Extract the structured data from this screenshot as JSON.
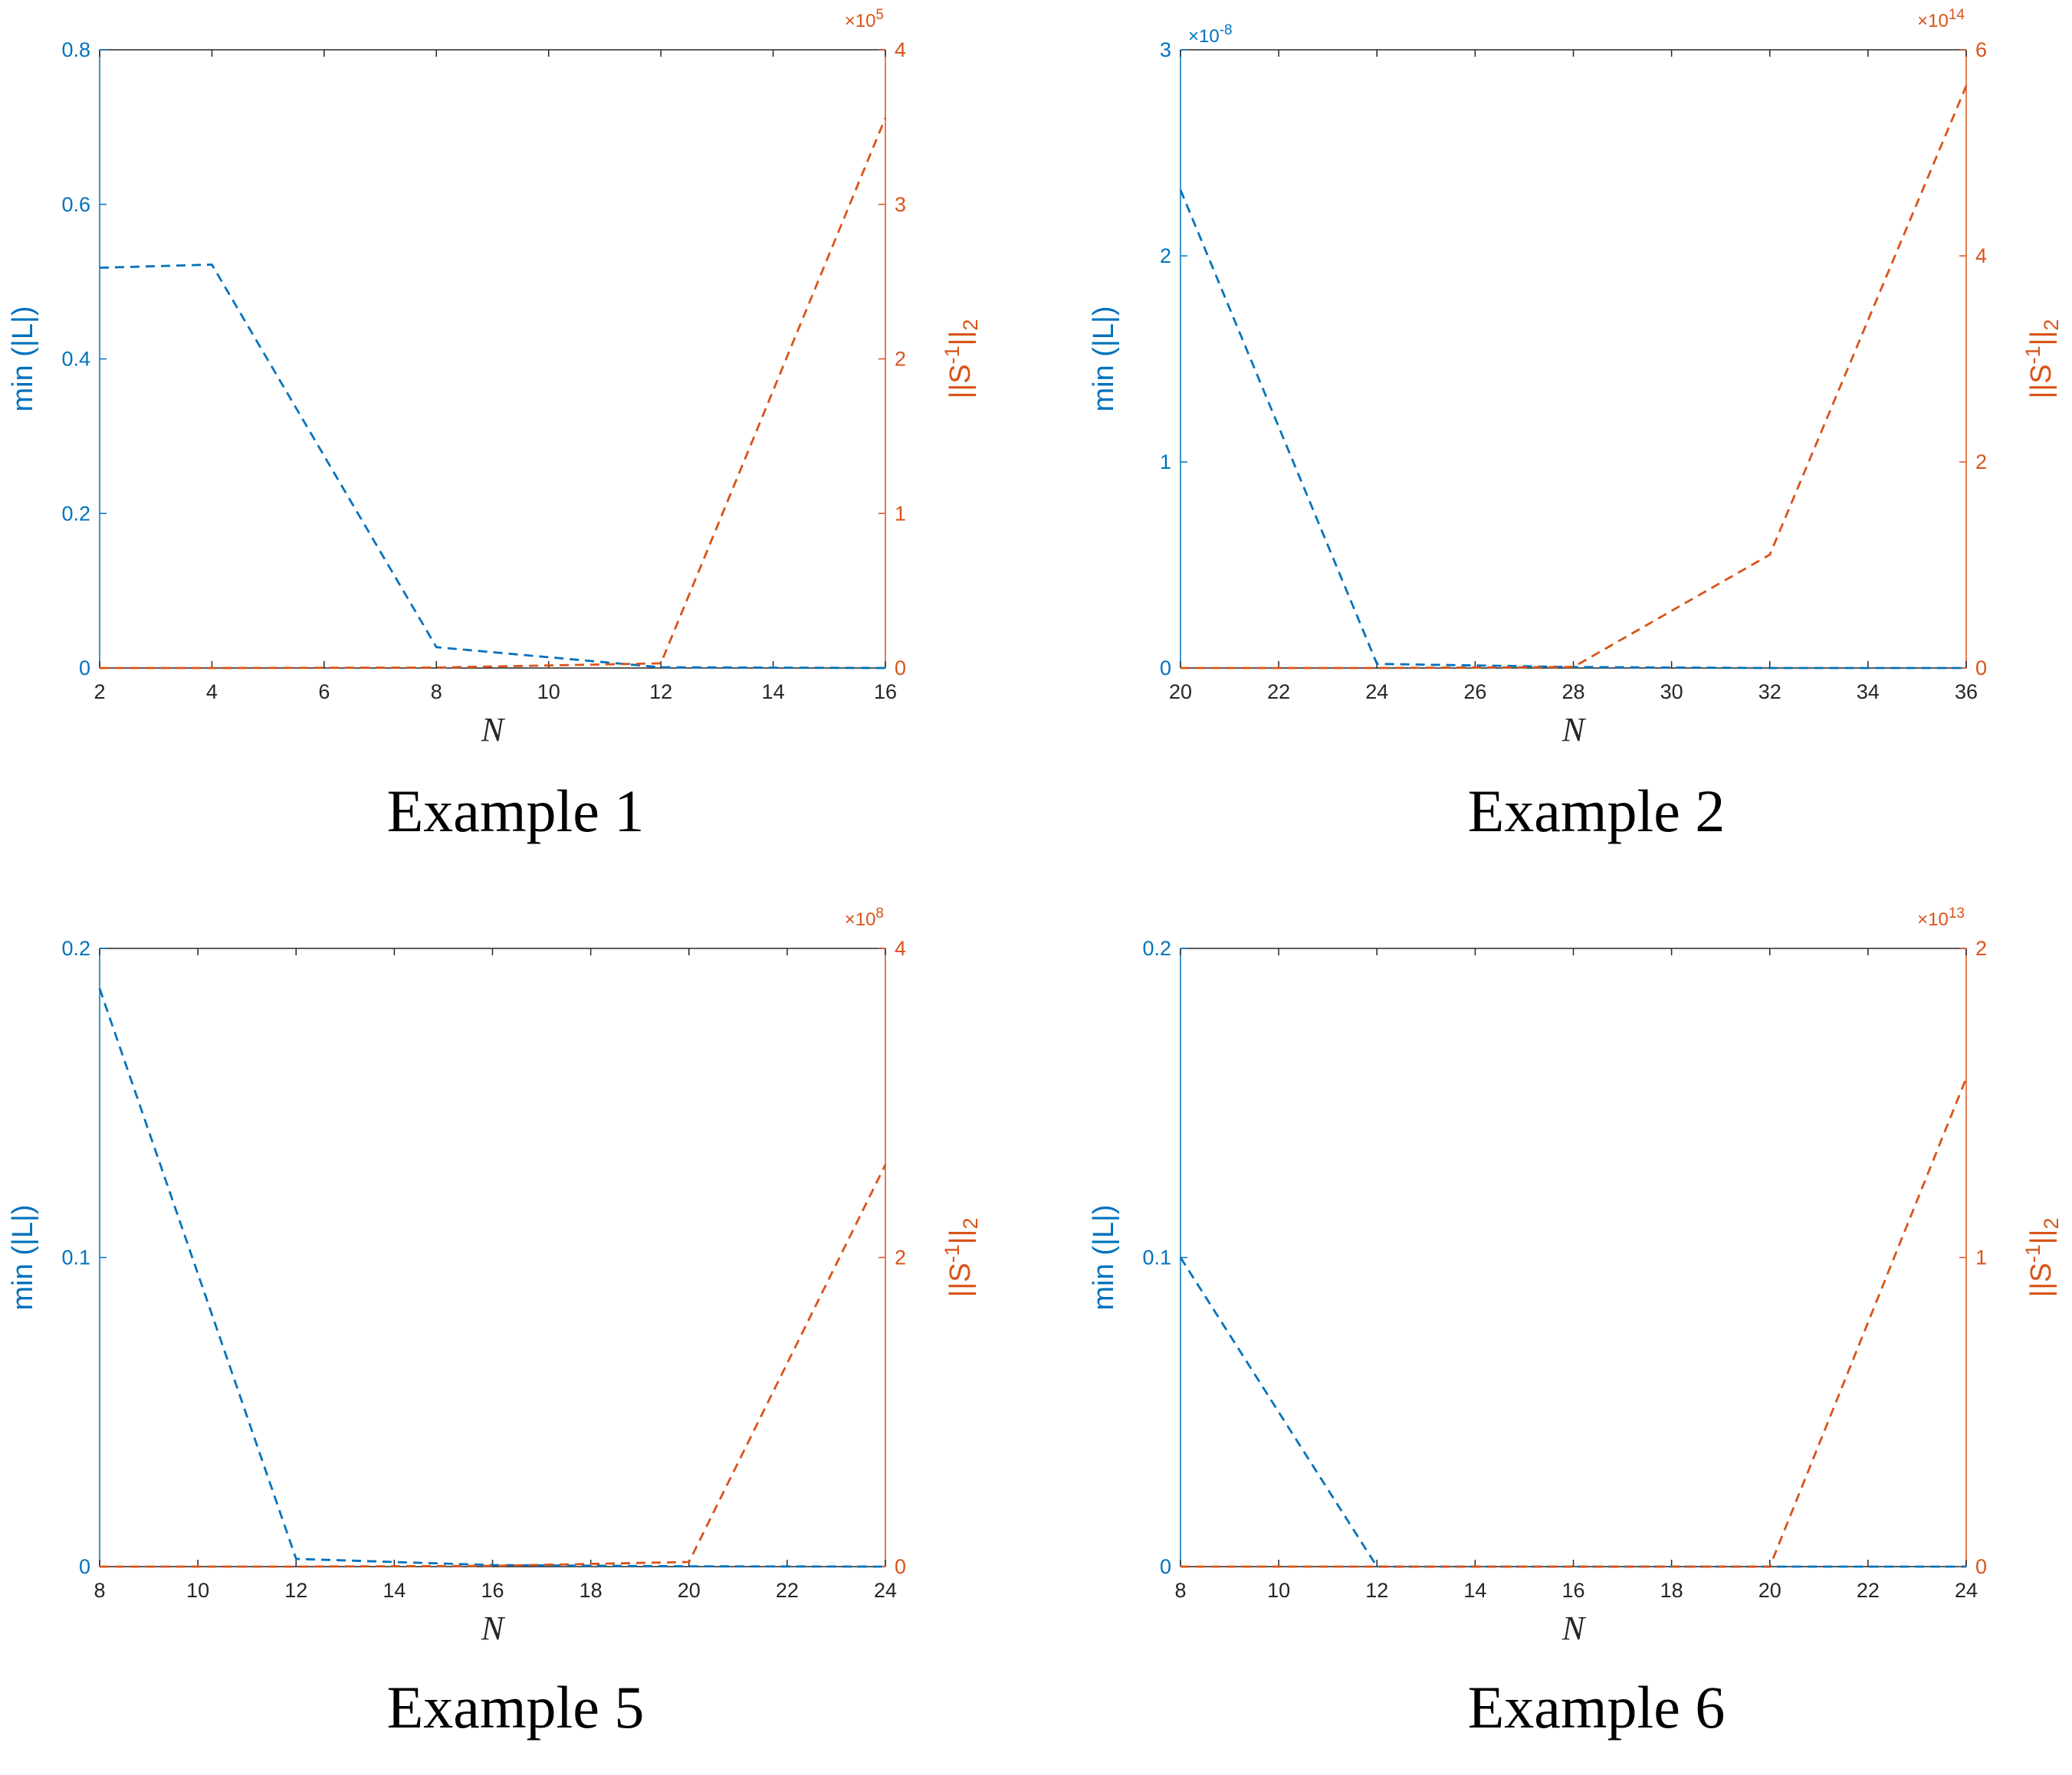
{
  "colors": {
    "left": "#0072BD",
    "right": "#D95319",
    "axis": "#262626"
  },
  "chart_data": [
    {
      "type": "line",
      "caption": "Example 1",
      "xlabel": "N",
      "ylabel_left": "min (|L|)",
      "ylabel_right": "||S^-1||_2",
      "xlim": [
        2,
        16
      ],
      "xticks": [
        "2",
        "4",
        "6",
        "8",
        "10",
        "12",
        "14",
        "16"
      ],
      "ylim_left": [
        0,
        0.8
      ],
      "yticks_left": [
        "0",
        "0.2",
        "0.4",
        "0.6",
        "0.8"
      ],
      "exp_left": null,
      "ylim_right": [
        0,
        4
      ],
      "yticks_right": [
        "0",
        "1",
        "2",
        "3",
        "4"
      ],
      "exp_right": "5",
      "series": [
        {
          "axis": "left",
          "style": "dashed",
          "x": [
            2,
            4,
            8,
            12,
            16
          ],
          "y": [
            0.518,
            0.522,
            0.027,
            0.001,
            0
          ]
        },
        {
          "axis": "right",
          "style": "dashed",
          "x": [
            2,
            4,
            8,
            12,
            16
          ],
          "y": [
            0,
            0,
            0.003,
            0.03,
            3.56
          ]
        }
      ]
    },
    {
      "type": "line",
      "caption": "Example 2",
      "xlabel": "N",
      "ylabel_left": "min (|L|)",
      "ylabel_right": "||S^-1||_2",
      "xlim": [
        20,
        36
      ],
      "xticks": [
        "20",
        "22",
        "24",
        "26",
        "28",
        "30",
        "32",
        "34",
        "36"
      ],
      "ylim_left": [
        0,
        3
      ],
      "yticks_left": [
        "0",
        "1",
        "2",
        "3"
      ],
      "exp_left": "-8",
      "ylim_right": [
        0,
        6
      ],
      "yticks_right": [
        "0",
        "2",
        "4",
        "6"
      ],
      "exp_right": "14",
      "series": [
        {
          "axis": "left",
          "style": "dashed",
          "x": [
            20,
            24,
            28,
            32,
            36
          ],
          "y": [
            2.32,
            0.02,
            0.005,
            0,
            0
          ]
        },
        {
          "axis": "right",
          "style": "dashed",
          "x": [
            20,
            24,
            28,
            32,
            36
          ],
          "y": [
            0,
            0,
            0.01,
            1.1,
            5.65
          ]
        }
      ]
    },
    {
      "type": "line",
      "caption": "Example 5",
      "xlabel": "N",
      "ylabel_left": "min (|L|)",
      "ylabel_right": "||S^-1||_2",
      "xlim": [
        8,
        24
      ],
      "xticks": [
        "8",
        "10",
        "12",
        "14",
        "16",
        "18",
        "20",
        "22",
        "24"
      ],
      "ylim_left": [
        0,
        0.2
      ],
      "yticks_left": [
        "0",
        "0.1",
        "0.2"
      ],
      "exp_left": null,
      "ylim_right": [
        0,
        4
      ],
      "yticks_right": [
        "0",
        "2",
        "4"
      ],
      "exp_right": "8",
      "series": [
        {
          "axis": "left",
          "style": "dashed",
          "x": [
            8,
            12,
            16,
            20,
            24
          ],
          "y": [
            0.187,
            0.0025,
            0.0005,
            0.0001,
            0
          ]
        },
        {
          "axis": "right",
          "style": "dashed",
          "x": [
            8,
            12,
            16,
            20,
            24
          ],
          "y": [
            0,
            0,
            0.005,
            0.03,
            2.6
          ]
        }
      ]
    },
    {
      "type": "line",
      "caption": "Example 6",
      "xlabel": "N",
      "ylabel_left": "min (|L|)",
      "ylabel_right": "||S^-1||_2",
      "xlim": [
        8,
        24
      ],
      "xticks": [
        "8",
        "10",
        "12",
        "14",
        "16",
        "18",
        "20",
        "22",
        "24"
      ],
      "ylim_left": [
        0,
        0.2
      ],
      "yticks_left": [
        "0",
        "0.1",
        "0.2"
      ],
      "exp_left": null,
      "ylim_right": [
        0,
        2
      ],
      "yticks_right": [
        "0",
        "1",
        "2"
      ],
      "exp_right": "13",
      "series": [
        {
          "axis": "left",
          "style": "dashed",
          "x": [
            8,
            12,
            16,
            20,
            24
          ],
          "y": [
            0.1,
            0,
            0,
            0,
            0
          ]
        },
        {
          "axis": "right",
          "style": "dashed",
          "x": [
            8,
            12,
            16,
            20,
            24
          ],
          "y": [
            0,
            0,
            0,
            0,
            1.58
          ]
        }
      ]
    }
  ]
}
